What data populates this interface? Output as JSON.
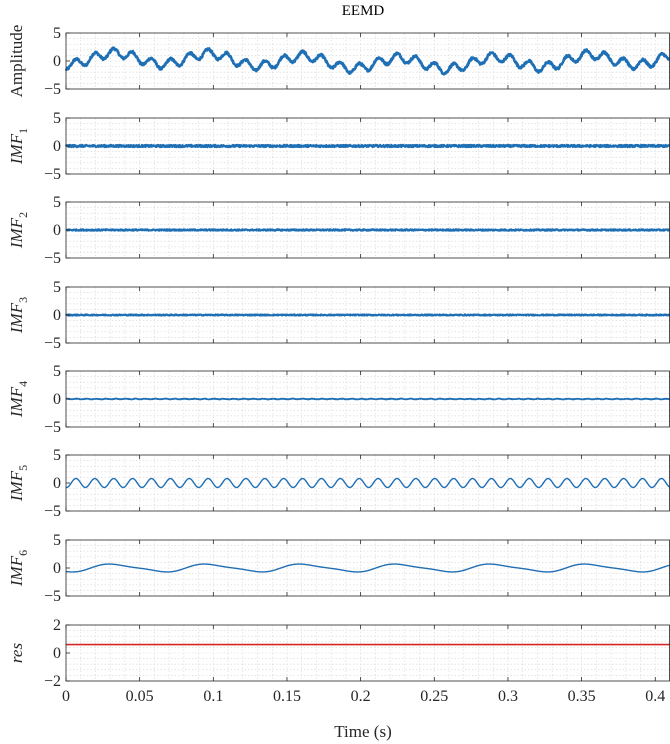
{
  "chart_data": {
    "type": "line",
    "title": "EEMD",
    "xlabel": "Time (s)",
    "xlim": [
      0,
      0.41
    ],
    "x_ticks": [
      0,
      0.05,
      0.1,
      0.15,
      0.2,
      0.25,
      0.3,
      0.35,
      0.4
    ],
    "x_tick_labels": [
      "0",
      "0.05",
      "0.1",
      "0.15",
      "0.2",
      "0.25",
      "0.3",
      "0.35",
      "0.4"
    ],
    "grid": true,
    "colors": {
      "signal": "#1f6fb4",
      "residual": "#d62728",
      "axis": "#262626"
    },
    "panels": [
      {
        "name": "signal",
        "ylabel": "Amplitude",
        "ylabel_sub": "",
        "ylim": [
          -5,
          5
        ],
        "y_ticks": [
          -5,
          0,
          5
        ],
        "y_tick_labels": [
          "−5",
          "0",
          "5"
        ],
        "components": [
          {
            "freq_hz": 78,
            "amp": 0.8
          },
          {
            "freq_hz": 15.5,
            "amp": 1.0
          },
          {
            "freq_hz": 2.6,
            "amp": 0.45
          }
        ],
        "noise": 0.22,
        "offset": 0,
        "color": "#1f6fb4",
        "width": 2.6
      },
      {
        "name": "imf1",
        "ylabel": "IMF",
        "ylabel_sub": "1",
        "ylim": [
          -5,
          5
        ],
        "y_ticks": [
          -5,
          0,
          5
        ],
        "y_tick_labels": [
          "−5",
          "0",
          "5"
        ],
        "components": [],
        "noise": 0.18,
        "offset": 0,
        "color": "#1f6fb4",
        "width": 2.4
      },
      {
        "name": "imf2",
        "ylabel": "IMF",
        "ylabel_sub": "2",
        "ylim": [
          -5,
          5
        ],
        "y_ticks": [
          -5,
          0,
          5
        ],
        "y_tick_labels": [
          "−5",
          "0",
          "5"
        ],
        "components": [],
        "noise": 0.12,
        "offset": 0,
        "color": "#1f6fb4",
        "width": 2.2
      },
      {
        "name": "imf3",
        "ylabel": "IMF",
        "ylabel_sub": "3",
        "ylim": [
          -5,
          5
        ],
        "y_ticks": [
          -5,
          0,
          5
        ],
        "y_tick_labels": [
          "−5",
          "0",
          "5"
        ],
        "components": [],
        "noise": 0.1,
        "offset": 0,
        "color": "#1f6fb4",
        "width": 2.1
      },
      {
        "name": "imf4",
        "ylabel": "IMF",
        "ylabel_sub": "4",
        "ylim": [
          -5,
          5
        ],
        "y_ticks": [
          -5,
          0,
          5
        ],
        "y_tick_labels": [
          "−5",
          "0",
          "5"
        ],
        "components": [
          {
            "freq_hz": 150,
            "amp": 0.05
          }
        ],
        "noise": 0.04,
        "offset": 0,
        "color": "#1f6fb4",
        "width": 1.8
      },
      {
        "name": "imf5",
        "ylabel": "IMF",
        "ylabel_sub": "5",
        "ylim": [
          -5,
          5
        ],
        "y_ticks": [
          -5,
          0,
          5
        ],
        "y_tick_labels": [
          "−5",
          "0",
          "5"
        ],
        "components": [
          {
            "freq_hz": 78,
            "amp": 0.8
          }
        ],
        "noise": 0,
        "offset": 0,
        "color": "#1f6fb4",
        "width": 1.4
      },
      {
        "name": "imf6",
        "ylabel": "IMF",
        "ylabel_sub": "6",
        "ylim": [
          -5,
          5
        ],
        "y_ticks": [
          -5,
          0,
          5
        ],
        "y_tick_labels": [
          "−5",
          "0",
          "5"
        ],
        "components": [
          {
            "freq_hz": 15.5,
            "amp": 0.65
          },
          {
            "freq_hz": 31,
            "amp": 0.15
          }
        ],
        "noise": 0,
        "offset": 0,
        "color": "#1f6fb4",
        "width": 1.4
      },
      {
        "name": "residual",
        "ylabel": "res",
        "ylabel_sub": "",
        "ylim": [
          -2,
          2
        ],
        "y_ticks": [
          -2,
          0,
          2
        ],
        "y_tick_labels": [
          "−2",
          "0",
          "2"
        ],
        "components": [],
        "noise": 0,
        "offset": 0.6,
        "color": "#d62728",
        "width": 1.6
      }
    ]
  }
}
